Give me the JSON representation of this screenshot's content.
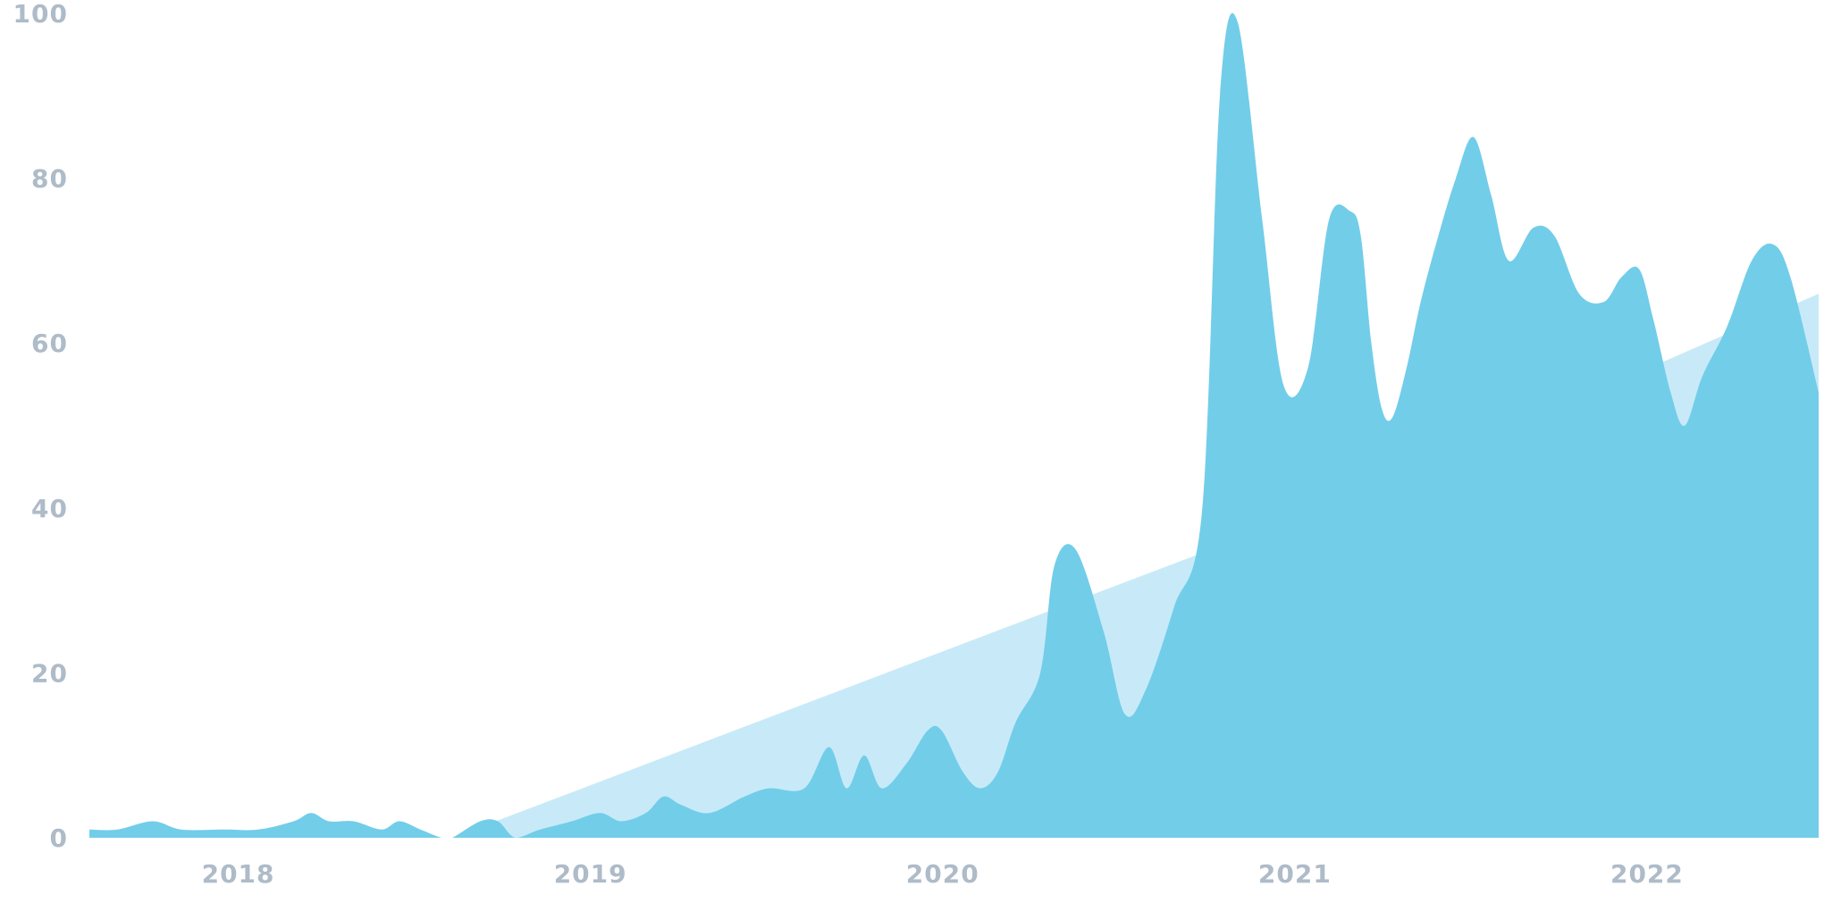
{
  "chart_data": {
    "type": "area",
    "title": "",
    "xlabel": "",
    "ylabel": "",
    "ylim": [
      0,
      100
    ],
    "yticks": [
      0,
      20,
      40,
      60,
      80,
      100
    ],
    "xticks": [
      {
        "label": "2018",
        "x": 2018.0
      },
      {
        "label": "2019",
        "x": 2019.0
      },
      {
        "label": "2020",
        "x": 2020.0
      },
      {
        "label": "2021",
        "x": 2021.0
      },
      {
        "label": "2022",
        "x": 2022.0
      }
    ],
    "grid": false,
    "legend": "none",
    "series": [
      {
        "role": "trend",
        "color": "#c8eaf8",
        "x": [
          2018.45,
          2021.1,
          2022.33
        ],
        "y": [
          0,
          43,
          66
        ]
      },
      {
        "role": "values",
        "color": "#72cde9",
        "x": [
          2017.42,
          2017.5,
          2017.6,
          2017.68,
          2017.8,
          2017.9,
          2018.0,
          2018.05,
          2018.1,
          2018.17,
          2018.25,
          2018.3,
          2018.36,
          2018.42,
          2018.45,
          2018.53,
          2018.58,
          2018.63,
          2018.7,
          2018.79,
          2018.87,
          2018.93,
          2019.0,
          2019.05,
          2019.1,
          2019.18,
          2019.28,
          2019.35,
          2019.45,
          2019.52,
          2019.57,
          2019.62,
          2019.67,
          2019.74,
          2019.8,
          2019.84,
          2019.9,
          2019.95,
          2020.0,
          2020.05,
          2020.12,
          2020.16,
          2020.22,
          2020.3,
          2020.36,
          2020.42,
          2020.5,
          2020.58,
          2020.63,
          2020.68,
          2020.75,
          2020.81,
          2020.88,
          2020.94,
          2021.0,
          2021.03,
          2021.06,
          2021.09,
          2021.12,
          2021.16,
          2021.2,
          2021.25,
          2021.3,
          2021.35,
          2021.4,
          2021.45,
          2021.52,
          2021.58,
          2021.65,
          2021.72,
          2021.77,
          2021.82,
          2021.86,
          2021.91,
          2021.95,
          2022.0,
          2022.07,
          2022.14,
          2022.2,
          2022.25,
          2022.33
        ],
        "y": [
          1,
          1,
          2,
          1,
          1,
          1,
          2,
          3,
          2,
          2,
          1,
          2,
          1,
          0,
          0,
          2,
          2,
          0,
          1,
          2,
          3,
          2,
          3,
          5,
          4,
          3,
          5,
          6,
          6,
          11,
          6,
          10,
          6,
          9,
          13,
          13,
          8,
          6,
          8,
          14,
          20,
          33,
          35,
          25,
          15,
          18,
          28,
          40,
          90,
          99,
          75,
          55,
          57,
          75,
          76,
          73,
          60,
          52,
          51,
          57,
          65,
          73,
          80,
          85,
          78,
          70,
          74,
          73,
          66,
          65,
          68,
          69,
          63,
          54,
          50,
          56,
          62,
          70,
          72,
          68,
          54
        ]
      }
    ]
  }
}
